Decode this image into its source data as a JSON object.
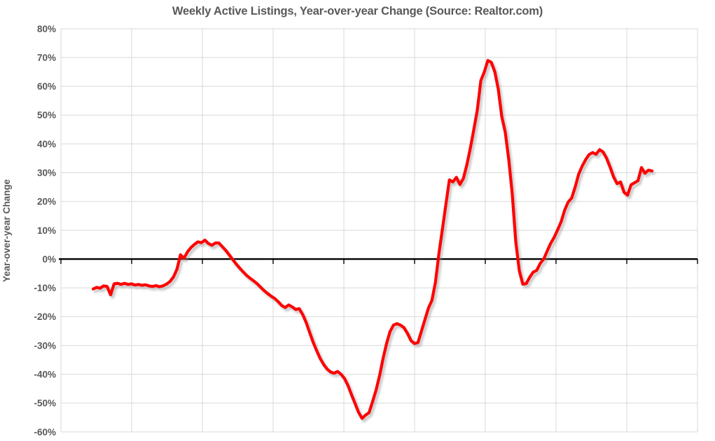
{
  "chart_data": {
    "type": "line",
    "title": "Weekly Active Listings, Year-over-year Change (Source: Realtor.com)",
    "ylabel": "Year-over-year Change",
    "xlabel": "",
    "ylim": [
      -60,
      80
    ],
    "ytick_step": 10,
    "ytick_labels": [
      "80%",
      "70%",
      "60%",
      "50%",
      "40%",
      "30%",
      "20%",
      "10%",
      "0%",
      "-10%",
      "-20%",
      "-30%",
      "-40%",
      "-50%",
      "-60%"
    ],
    "xtick_labels": [],
    "x_gridline_count": 10,
    "grid": true,
    "legend": "none",
    "zero_axis": true,
    "x_description": "Weekly observations; no x-axis tick labels are shown in the chart",
    "series": [
      {
        "name": "Weekly active listings, year-over-year change (%)",
        "color": "#FF0000",
        "values": [
          -10.4,
          -9.8,
          -10.1,
          -9.3,
          -9.5,
          -12.4,
          -8.6,
          -8.4,
          -8.8,
          -8.4,
          -8.8,
          -8.6,
          -9.0,
          -8.8,
          -9.1,
          -8.9,
          -9.3,
          -9.5,
          -9.2,
          -9.6,
          -9.3,
          -8.7,
          -7.8,
          -6.2,
          -3.5,
          1.5,
          0.3,
          2.5,
          4.0,
          5.1,
          6.0,
          5.7,
          6.6,
          5.4,
          4.8,
          5.6,
          5.6,
          4.3,
          3.0,
          1.4,
          -0.2,
          -1.8,
          -3.2,
          -4.5,
          -5.7,
          -6.7,
          -7.6,
          -8.6,
          -9.8,
          -11.0,
          -12.0,
          -12.9,
          -13.7,
          -14.8,
          -16.1,
          -16.8,
          -15.9,
          -16.6,
          -17.5,
          -17.2,
          -19.3,
          -22.0,
          -25.5,
          -28.9,
          -31.8,
          -34.5,
          -36.6,
          -38.2,
          -39.2,
          -39.6,
          -39.0,
          -40.0,
          -41.5,
          -44.0,
          -47.2,
          -50.2,
          -53.2,
          -55.3,
          -54.2,
          -53.3,
          -49.5,
          -45.5,
          -40.5,
          -34.5,
          -29.3,
          -25.2,
          -22.9,
          -22.4,
          -22.9,
          -23.8,
          -25.8,
          -28.3,
          -29.3,
          -29.0,
          -25.0,
          -21.0,
          -17.0,
          -14.3,
          -8.0,
          2.0,
          10.5,
          19.0,
          27.5,
          26.8,
          28.4,
          25.9,
          28.0,
          32.8,
          38.5,
          45.0,
          51.8,
          62.0,
          65.0,
          69.0,
          68.3,
          65.0,
          59.0,
          49.5,
          44.0,
          34.5,
          22.5,
          6.0,
          -4.0,
          -8.7,
          -8.5,
          -6.3,
          -4.5,
          -3.9,
          -1.5,
          0.0,
          2.8,
          5.5,
          7.6,
          10.2,
          13.0,
          17.0,
          19.8,
          21.2,
          25.0,
          29.5,
          32.3,
          34.5,
          36.3,
          37.0,
          36.4,
          38.0,
          37.2,
          35.0,
          32.0,
          28.6,
          26.2,
          26.8,
          23.2,
          22.2,
          25.8,
          26.5,
          27.2,
          31.8,
          29.8,
          30.9,
          30.6
        ]
      }
    ]
  },
  "style": {
    "background": "#FFFFFF",
    "text_color": "#595959",
    "grid_color": "#D9D9D9",
    "zero_axis_color": "#000000",
    "line_color": "#FF0000",
    "line_width": 4.2,
    "line_shadow": true
  }
}
